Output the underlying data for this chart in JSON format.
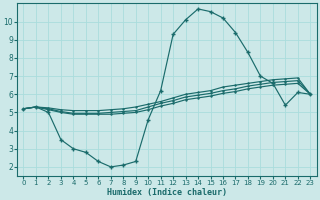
{
  "bg_color": "#cce8e8",
  "grid_color": "#aadddd",
  "line_color": "#1a6b6b",
  "xlabel": "Humidex (Indice chaleur)",
  "xlim": [
    -0.5,
    23.5
  ],
  "ylim": [
    1.5,
    11
  ],
  "xticks": [
    0,
    1,
    2,
    3,
    4,
    5,
    6,
    7,
    8,
    9,
    10,
    11,
    12,
    13,
    14,
    15,
    16,
    17,
    18,
    19,
    20,
    21,
    22,
    23
  ],
  "yticks": [
    2,
    3,
    4,
    5,
    6,
    7,
    8,
    9,
    10
  ],
  "line1_x": [
    0,
    1,
    2,
    3,
    4,
    5,
    6,
    7,
    8,
    9,
    10,
    11,
    12,
    13,
    14,
    15,
    16,
    17,
    18,
    19,
    20,
    21,
    22,
    23
  ],
  "line1_y": [
    5.2,
    5.3,
    5.0,
    3.5,
    3.0,
    2.8,
    2.3,
    2.0,
    2.1,
    2.3,
    4.6,
    6.2,
    9.3,
    10.1,
    10.7,
    10.55,
    10.2,
    9.4,
    8.3,
    7.0,
    6.6,
    5.4,
    6.1,
    6.0
  ],
  "line2_x": [
    0,
    1,
    2,
    3,
    4,
    5,
    6,
    7,
    8,
    9,
    10,
    11,
    12,
    13,
    14,
    15,
    16,
    17,
    18,
    19,
    20,
    21,
    22,
    23
  ],
  "line2_y": [
    5.2,
    5.3,
    5.25,
    5.15,
    5.1,
    5.1,
    5.1,
    5.15,
    5.2,
    5.3,
    5.45,
    5.6,
    5.8,
    6.0,
    6.1,
    6.2,
    6.4,
    6.5,
    6.6,
    6.7,
    6.8,
    6.85,
    6.9,
    6.0
  ],
  "line3_x": [
    0,
    1,
    2,
    3,
    4,
    5,
    6,
    7,
    8,
    9,
    10,
    11,
    12,
    13,
    14,
    15,
    16,
    17,
    18,
    19,
    20,
    21,
    22,
    23
  ],
  "line3_y": [
    5.2,
    5.3,
    5.2,
    5.05,
    4.95,
    4.95,
    4.95,
    5.0,
    5.05,
    5.1,
    5.3,
    5.5,
    5.65,
    5.85,
    5.95,
    6.05,
    6.2,
    6.3,
    6.45,
    6.55,
    6.65,
    6.7,
    6.75,
    6.0
  ],
  "line4_x": [
    0,
    1,
    2,
    3,
    4,
    5,
    6,
    7,
    8,
    9,
    10,
    11,
    12,
    13,
    14,
    15,
    16,
    17,
    18,
    19,
    20,
    21,
    22,
    23
  ],
  "line4_y": [
    5.2,
    5.3,
    5.15,
    5.0,
    4.9,
    4.9,
    4.9,
    4.9,
    4.95,
    5.0,
    5.15,
    5.35,
    5.5,
    5.7,
    5.8,
    5.9,
    6.05,
    6.15,
    6.3,
    6.4,
    6.5,
    6.55,
    6.6,
    6.0
  ]
}
